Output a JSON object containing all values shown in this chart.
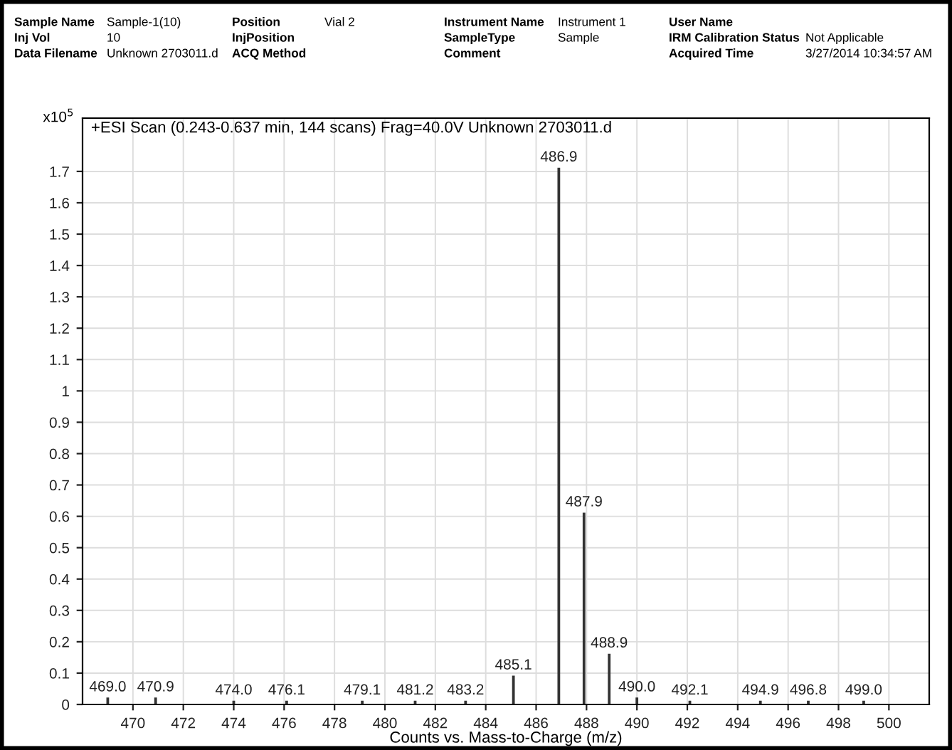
{
  "chart_data": {
    "type": "bar",
    "title": "+ESI Scan (0.243-0.637 min, 144 scans) Frag=40.0V Unknown 2703011.d",
    "xlabel": "Counts vs. Mass-to-Charge (m/z)",
    "ylabel": "x10$^{5}$",
    "x": [
      469.0,
      470.9,
      474.0,
      476.1,
      479.1,
      481.2,
      483.2,
      485.1,
      486.9,
      487.9,
      488.9,
      490.0,
      492.1,
      494.9,
      496.8,
      499.0
    ],
    "values": [
      0.02,
      0.02,
      0.01,
      0.01,
      0.01,
      0.01,
      0.01,
      0.09,
      1.71,
      0.61,
      0.16,
      0.02,
      0.01,
      0.01,
      0.01,
      0.01
    ],
    "color": "#333333",
    "xlim": [
      468.0,
      501.6
    ],
    "ylim": [
      0,
      1.87
    ],
    "xticks": [
      470,
      472,
      474,
      476,
      478,
      480,
      482,
      484,
      486,
      488,
      490,
      492,
      494,
      496,
      498,
      500
    ],
    "yticks": [
      0,
      0.1,
      0.2,
      0.3,
      0.4,
      0.5,
      0.6,
      0.7,
      0.8,
      0.9,
      1,
      1.1,
      1.2,
      1.3,
      1.4,
      1.5,
      1.6,
      1.7
    ],
    "grid": true,
    "annotations": [
      "Sample Name",
      "Sample-1(10)",
      "Position",
      "Vial 2",
      "Instrument Name",
      "Instrument 1",
      "User Name",
      "Inj Vol",
      "10",
      "InjPosition",
      "SampleType",
      "Sample",
      "IRM Calibration Status",
      "Not Applicable",
      "Data Filename",
      "Unknown 2703011.d",
      "ACQ Method",
      "Comment",
      "Acquired Time",
      "3/27/2014 10:34:57 AM",
      {
        "text": "469.0",
        "x": 469.0,
        "y": 0.02
      },
      {
        "text": "470.9",
        "x": 470.9,
        "y": 0.02
      },
      {
        "text": "474.0",
        "x": 474.0,
        "y": 0.01
      },
      {
        "text": "476.1",
        "x": 476.1,
        "y": 0.01
      },
      {
        "text": "479.1",
        "x": 479.1,
        "y": 0.01
      },
      {
        "text": "481.2",
        "x": 481.2,
        "y": 0.01
      },
      {
        "text": "483.2",
        "x": 483.2,
        "y": 0.01
      },
      {
        "text": "485.1",
        "x": 485.1,
        "y": 0.09
      },
      {
        "text": "486.9",
        "x": 486.9,
        "y": 1.71
      },
      {
        "text": "487.9",
        "x": 487.9,
        "y": 0.61
      },
      {
        "text": "488.9",
        "x": 488.9,
        "y": 0.16
      },
      {
        "text": "490.0",
        "x": 490.0,
        "y": 0.02
      },
      {
        "text": "492.1",
        "x": 492.1,
        "y": 0.01
      },
      {
        "text": "494.9",
        "x": 494.9,
        "y": 0.01
      },
      {
        "text": "496.8",
        "x": 496.8,
        "y": 0.01
      },
      {
        "text": "499.0",
        "x": 499.0,
        "y": 0.01
      }
    ]
  }
}
